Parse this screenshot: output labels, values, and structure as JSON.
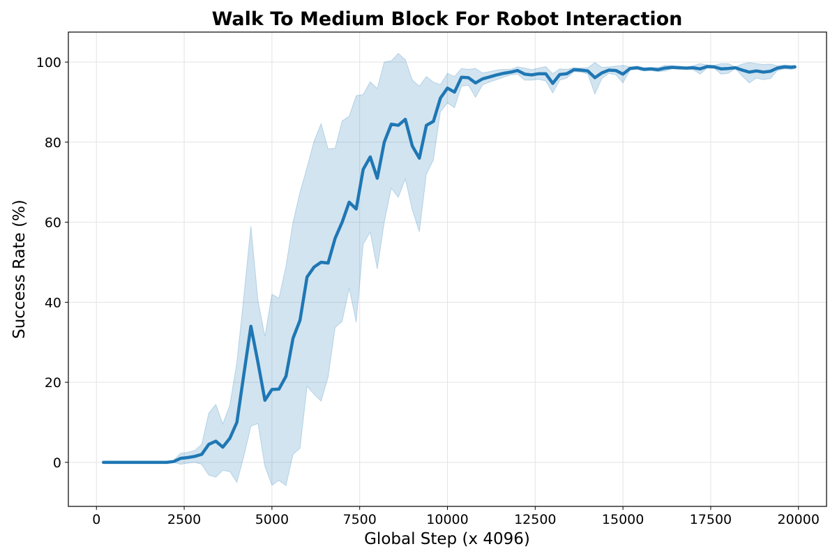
{
  "chart_data": {
    "type": "line",
    "title": "Walk To Medium Block For Robot Interaction",
    "xlabel": "Global Step (x 4096)",
    "ylabel": "Success Rate (%)",
    "xlim": [
      -800,
      20800
    ],
    "ylim": [
      -11,
      107.5
    ],
    "xticks": [
      0,
      2500,
      5000,
      7500,
      10000,
      12500,
      15000,
      17500,
      20000
    ],
    "yticks": [
      0,
      20,
      40,
      60,
      80,
      100
    ],
    "grid": true,
    "colors": {
      "line": "#1f77b4",
      "band": "#1f77b4"
    },
    "series": [
      {
        "x": [
          200,
          400,
          600,
          800,
          1000,
          1200,
          1400,
          1600,
          1800,
          2000,
          2200,
          2400,
          2600,
          2800,
          3000,
          3200,
          3400,
          3600,
          3800,
          4000,
          4200,
          4400,
          4600,
          4800,
          5000,
          5200,
          5400,
          5600,
          5800,
          6000,
          6200,
          6400,
          6600,
          6800,
          7000,
          7200,
          7400,
          7600,
          7800,
          8000,
          8200,
          8400,
          8600,
          8800,
          9000,
          9200,
          9400,
          9600,
          9800,
          10000,
          10200,
          10400,
          10600,
          10800,
          11000,
          11200,
          11400,
          11600,
          11800,
          12000,
          12200,
          12400,
          12600,
          12800,
          13000,
          13200,
          13400,
          13600,
          13800,
          14000,
          14200,
          14400,
          14600,
          14800,
          15000,
          15200,
          15400,
          15600,
          15800,
          16000,
          16200,
          16400,
          16600,
          16800,
          17000,
          17200,
          17400,
          17600,
          17800,
          18000,
          18200,
          18400,
          18600,
          18800,
          19000,
          19200,
          19400,
          19600,
          19800,
          19900
        ],
        "values": [
          0,
          0,
          0,
          0,
          0,
          0,
          0,
          0,
          0,
          0,
          0.2,
          1,
          1.2,
          1.5,
          2,
          4.5,
          5.3,
          3.8,
          6,
          10,
          22,
          34,
          25,
          15.5,
          18.2,
          18.3,
          21.5,
          31,
          35.5,
          46.3,
          48.8,
          50,
          49.8,
          56,
          60,
          65,
          63.3,
          73.2,
          76.3,
          71,
          80,
          84.5,
          84.2,
          85.7,
          79,
          76,
          84.2,
          85.2,
          91,
          93.5,
          92.5,
          96.2,
          96.1,
          94.8,
          95.8,
          96.3,
          96.8,
          97.2,
          97.5,
          97.9,
          97,
          96.8,
          97.1,
          97.1,
          94.7,
          96.9,
          97.1,
          98.1,
          98,
          97.8,
          96.1,
          97.3,
          98,
          97.9,
          97,
          98.4,
          98.6,
          98.2,
          98.3,
          98.1,
          98.5,
          98.7,
          98.6,
          98.5,
          98.6,
          98.3,
          98.9,
          98.8,
          98.3,
          98.4,
          98.6,
          98,
          97.5,
          97.8,
          97.5,
          97.7,
          98.5,
          98.8,
          98.7,
          98.8
        ],
        "lower": [
          0,
          0,
          0,
          0,
          0,
          0,
          0,
          0,
          0,
          0,
          0,
          -0.5,
          -0.2,
          0,
          -0.5,
          -3.2,
          -3.7,
          -2,
          -2.3,
          -5,
          1.5,
          9,
          9.7,
          -1,
          -5.7,
          -4.5,
          -5.8,
          2,
          3.5,
          19,
          17,
          15.3,
          21.3,
          33.7,
          35.2,
          43.5,
          35,
          54.5,
          57.5,
          48.3,
          60,
          68.5,
          66.2,
          70.8,
          63,
          57.6,
          72,
          75.6,
          87.6,
          89.8,
          88.6,
          94,
          94.2,
          91.2,
          94.3,
          95,
          95.6,
          96.2,
          96.8,
          97,
          95.5,
          95.5,
          95.7,
          95.3,
          92.3,
          95.5,
          96,
          97.6,
          97.5,
          97,
          92,
          95.9,
          97.2,
          96.8,
          94.8,
          98,
          98.2,
          97.8,
          97.9,
          97.6,
          97.8,
          98.3,
          98.2,
          98.2,
          98.1,
          97,
          98.5,
          98.4,
          97,
          97.2,
          98.4,
          96.5,
          94.8,
          96,
          95.6,
          95.9,
          97.9,
          98.3,
          98.2,
          98.4
        ],
        "upper": [
          0,
          0,
          0,
          0,
          0,
          0,
          0,
          0,
          0,
          0,
          0.5,
          2.3,
          2.5,
          3,
          4.5,
          12.3,
          14.5,
          9.6,
          14.3,
          25,
          41.5,
          59,
          40.5,
          31.5,
          42,
          41,
          49,
          60,
          67.5,
          73.7,
          80.3,
          84.6,
          78.3,
          78.5,
          85.3,
          86.5,
          91.6,
          91.9,
          95.1,
          93.4,
          100,
          100.3,
          102.2,
          100.6,
          95.5,
          94,
          96.4,
          95,
          94.4,
          97.2,
          96.4,
          98.4,
          98.2,
          98.4,
          97.3,
          97.6,
          98,
          98.2,
          98.2,
          98.8,
          98.5,
          98.1,
          98.5,
          98.9,
          97.1,
          98.3,
          98.2,
          98.6,
          98.5,
          98.6,
          99.9,
          98.7,
          98.8,
          99,
          99.2,
          98.8,
          99,
          98.6,
          98.7,
          98.6,
          99.2,
          99.1,
          99,
          98.8,
          99.1,
          99.6,
          99.3,
          99.2,
          99.6,
          99.6,
          98.8,
          99.5,
          99.9,
          99.6,
          99.4,
          99.5,
          99.1,
          99.3,
          99.2,
          99.2
        ]
      }
    ]
  }
}
